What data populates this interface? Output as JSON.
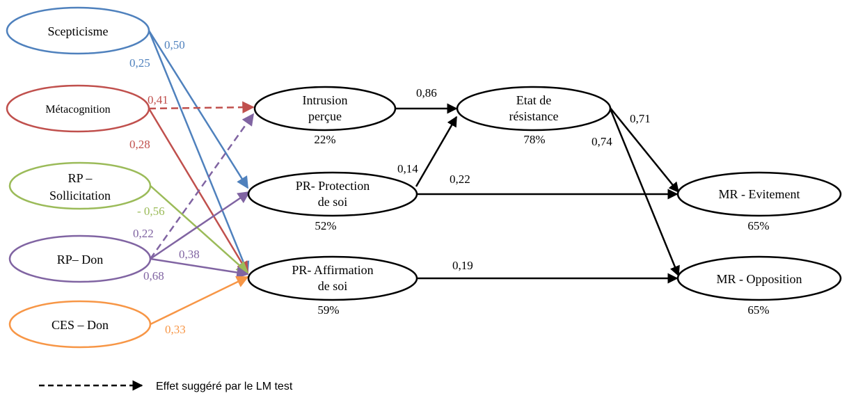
{
  "colors": {
    "blue": "#4f81bd",
    "red": "#c0504d",
    "green": "#9bbb59",
    "purple": "#8064a2",
    "orange": "#f79646",
    "black": "#000000"
  },
  "nodes": {
    "scepticisme": {
      "lines": [
        "Scepticisme"
      ]
    },
    "metacognition": {
      "lines": [
        "Métacognition"
      ]
    },
    "rp_sollicitation": {
      "lines": [
        "RP –",
        "Sollicitation"
      ]
    },
    "rp_don": {
      "lines": [
        "RP– Don"
      ]
    },
    "ces_don": {
      "lines": [
        "CES – Don"
      ]
    },
    "intrusion": {
      "lines": [
        "Intrusion",
        "perçue"
      ],
      "pct": "22%"
    },
    "protection": {
      "lines": [
        "PR- Protection",
        "de soi"
      ],
      "pct": "52%"
    },
    "affirmation": {
      "lines": [
        "PR- Affirmation",
        "de soi"
      ],
      "pct": "59%"
    },
    "resistance": {
      "lines": [
        "Etat de",
        "résistance"
      ],
      "pct": "78%"
    },
    "evitement": {
      "lines": [
        "MR - Evitement"
      ],
      "pct": "65%"
    },
    "opposition": {
      "lines": [
        "MR - Opposition"
      ],
      "pct": "65%"
    }
  },
  "coefficients": {
    "scep_protection": "0,50",
    "scep_affirmation": "0,25",
    "meta_intrusion": "0,41",
    "meta_affirmation": "0,28",
    "soll_affirmation": "- 0,56",
    "don_intrusion": "0,22",
    "don_protection": "0,38",
    "don_affirmation": "0,68",
    "ces_affirmation": "0,33",
    "intrusion_resistance": "0,86",
    "protection_resistance": "0,14",
    "protection_evitement": "0,22",
    "affirmation_opposition": "0,19",
    "resistance_evitement": "0,71",
    "resistance_opposition": "0,74"
  },
  "legend": {
    "text": "Effet suggéré par le LM test"
  }
}
